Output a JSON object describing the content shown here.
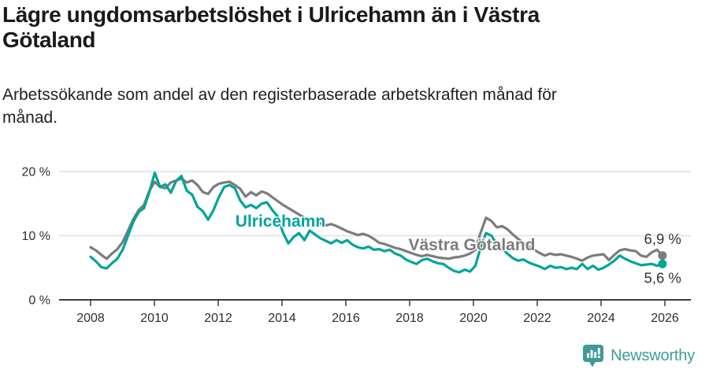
{
  "header": {
    "title_lines": [
      "Lägre ungdomsarbetslöshet i Ulricehamn än i Västra",
      "Götaland"
    ],
    "subtitle_lines": [
      "Arbetssökande som andel av den registerbaserade arbetskraften månad för",
      "månad."
    ]
  },
  "chart_data": {
    "type": "line",
    "x_start": 2008.0,
    "x_step_years": 0.1675,
    "xlim": [
      2007.0,
      2026.8
    ],
    "ylim": [
      0,
      22
    ],
    "grid": "horizontal-light",
    "x_ticks": [
      2008,
      2010,
      2012,
      2014,
      2016,
      2018,
      2020,
      2022,
      2024,
      2026
    ],
    "y_ticks": [
      {
        "value": 0,
        "label": "0 %"
      },
      {
        "value": 10,
        "label": "10 %"
      },
      {
        "value": 20,
        "label": "20 %"
      }
    ],
    "series": [
      {
        "name": "Västra Götaland",
        "color": "#7c7c7c",
        "label": {
          "text": "Västra Götaland",
          "x": 2019.95,
          "y": 8.6
        },
        "end_label": "6,9 %",
        "end_label_dy": -15,
        "values": [
          8.2,
          7.7,
          7.0,
          6.4,
          7.2,
          7.9,
          9.0,
          10.8,
          12.6,
          14.0,
          14.8,
          17.0,
          18.4,
          17.6,
          17.4,
          18.3,
          18.6,
          18.9,
          18.3,
          18.6,
          17.9,
          16.8,
          16.5,
          17.6,
          18.1,
          18.3,
          18.4,
          17.9,
          17.3,
          16.1,
          16.8,
          16.3,
          16.9,
          16.6,
          16.0,
          15.4,
          14.8,
          14.3,
          13.8,
          13.3,
          12.8,
          12.5,
          12.2,
          11.9,
          11.6,
          11.8,
          11.5,
          11.1,
          10.7,
          10.4,
          10.1,
          10.3,
          10.0,
          9.5,
          8.9,
          8.7,
          8.4,
          8.1,
          7.9,
          7.6,
          7.3,
          7.0,
          6.8,
          7.0,
          6.8,
          6.6,
          6.5,
          6.4,
          6.6,
          6.7,
          6.9,
          7.2,
          7.8,
          10.5,
          12.8,
          12.3,
          11.3,
          11.5,
          11.0,
          10.2,
          9.5,
          8.9,
          8.3,
          7.8,
          7.3,
          6.9,
          7.2,
          7.0,
          7.1,
          6.9,
          6.7,
          6.4,
          6.1,
          6.6,
          6.9,
          7.0,
          7.1,
          6.2,
          7.0,
          7.7,
          7.9,
          7.7,
          7.6,
          6.9,
          6.7,
          7.4,
          7.8,
          6.9
        ]
      },
      {
        "name": "Ulricehamn",
        "color": "#00a49a",
        "label": {
          "text": "Ulricehamn",
          "x": 2013.95,
          "y": 12.3
        },
        "end_label": "5,6 %",
        "end_label_dy": 24,
        "values": [
          6.7,
          6.0,
          5.1,
          4.9,
          5.7,
          6.4,
          7.8,
          10.0,
          12.2,
          13.7,
          14.3,
          16.8,
          19.8,
          17.6,
          18.0,
          16.7,
          18.5,
          19.3,
          17.0,
          16.4,
          14.5,
          13.8,
          12.5,
          14.0,
          16.0,
          17.6,
          17.9,
          17.4,
          15.5,
          14.4,
          14.8,
          14.3,
          15.0,
          15.2,
          14.0,
          13.0,
          10.5,
          8.8,
          9.8,
          10.4,
          9.3,
          10.8,
          10.2,
          9.6,
          9.2,
          8.8,
          9.3,
          8.9,
          9.3,
          8.6,
          8.2,
          8.0,
          8.3,
          7.8,
          7.9,
          7.6,
          7.8,
          7.2,
          6.9,
          6.3,
          5.9,
          5.6,
          6.2,
          6.4,
          6.0,
          5.7,
          5.6,
          5.0,
          4.5,
          4.3,
          4.7,
          4.4,
          5.3,
          8.2,
          10.4,
          10.0,
          8.7,
          8.0,
          7.2,
          6.5,
          6.1,
          6.3,
          5.8,
          5.5,
          5.2,
          4.8,
          5.3,
          5.0,
          5.1,
          4.8,
          5.0,
          4.8,
          5.6,
          4.8,
          5.3,
          4.7,
          5.0,
          5.5,
          6.1,
          6.9,
          6.4,
          6.0,
          5.7,
          5.4,
          5.5,
          5.6,
          5.3,
          5.6
        ]
      }
    ]
  },
  "footer": {
    "brand": "Newsworthy",
    "logo_icon": "bar-chart-speech-bubble"
  },
  "colors": {
    "accent_teal": "#00a49a",
    "series_gray": "#7c7c7c",
    "logo_teal": "#3f9b94",
    "grid": "#e0e0e0",
    "axis": "#3c3c3c",
    "text": "#1a1a1a"
  }
}
